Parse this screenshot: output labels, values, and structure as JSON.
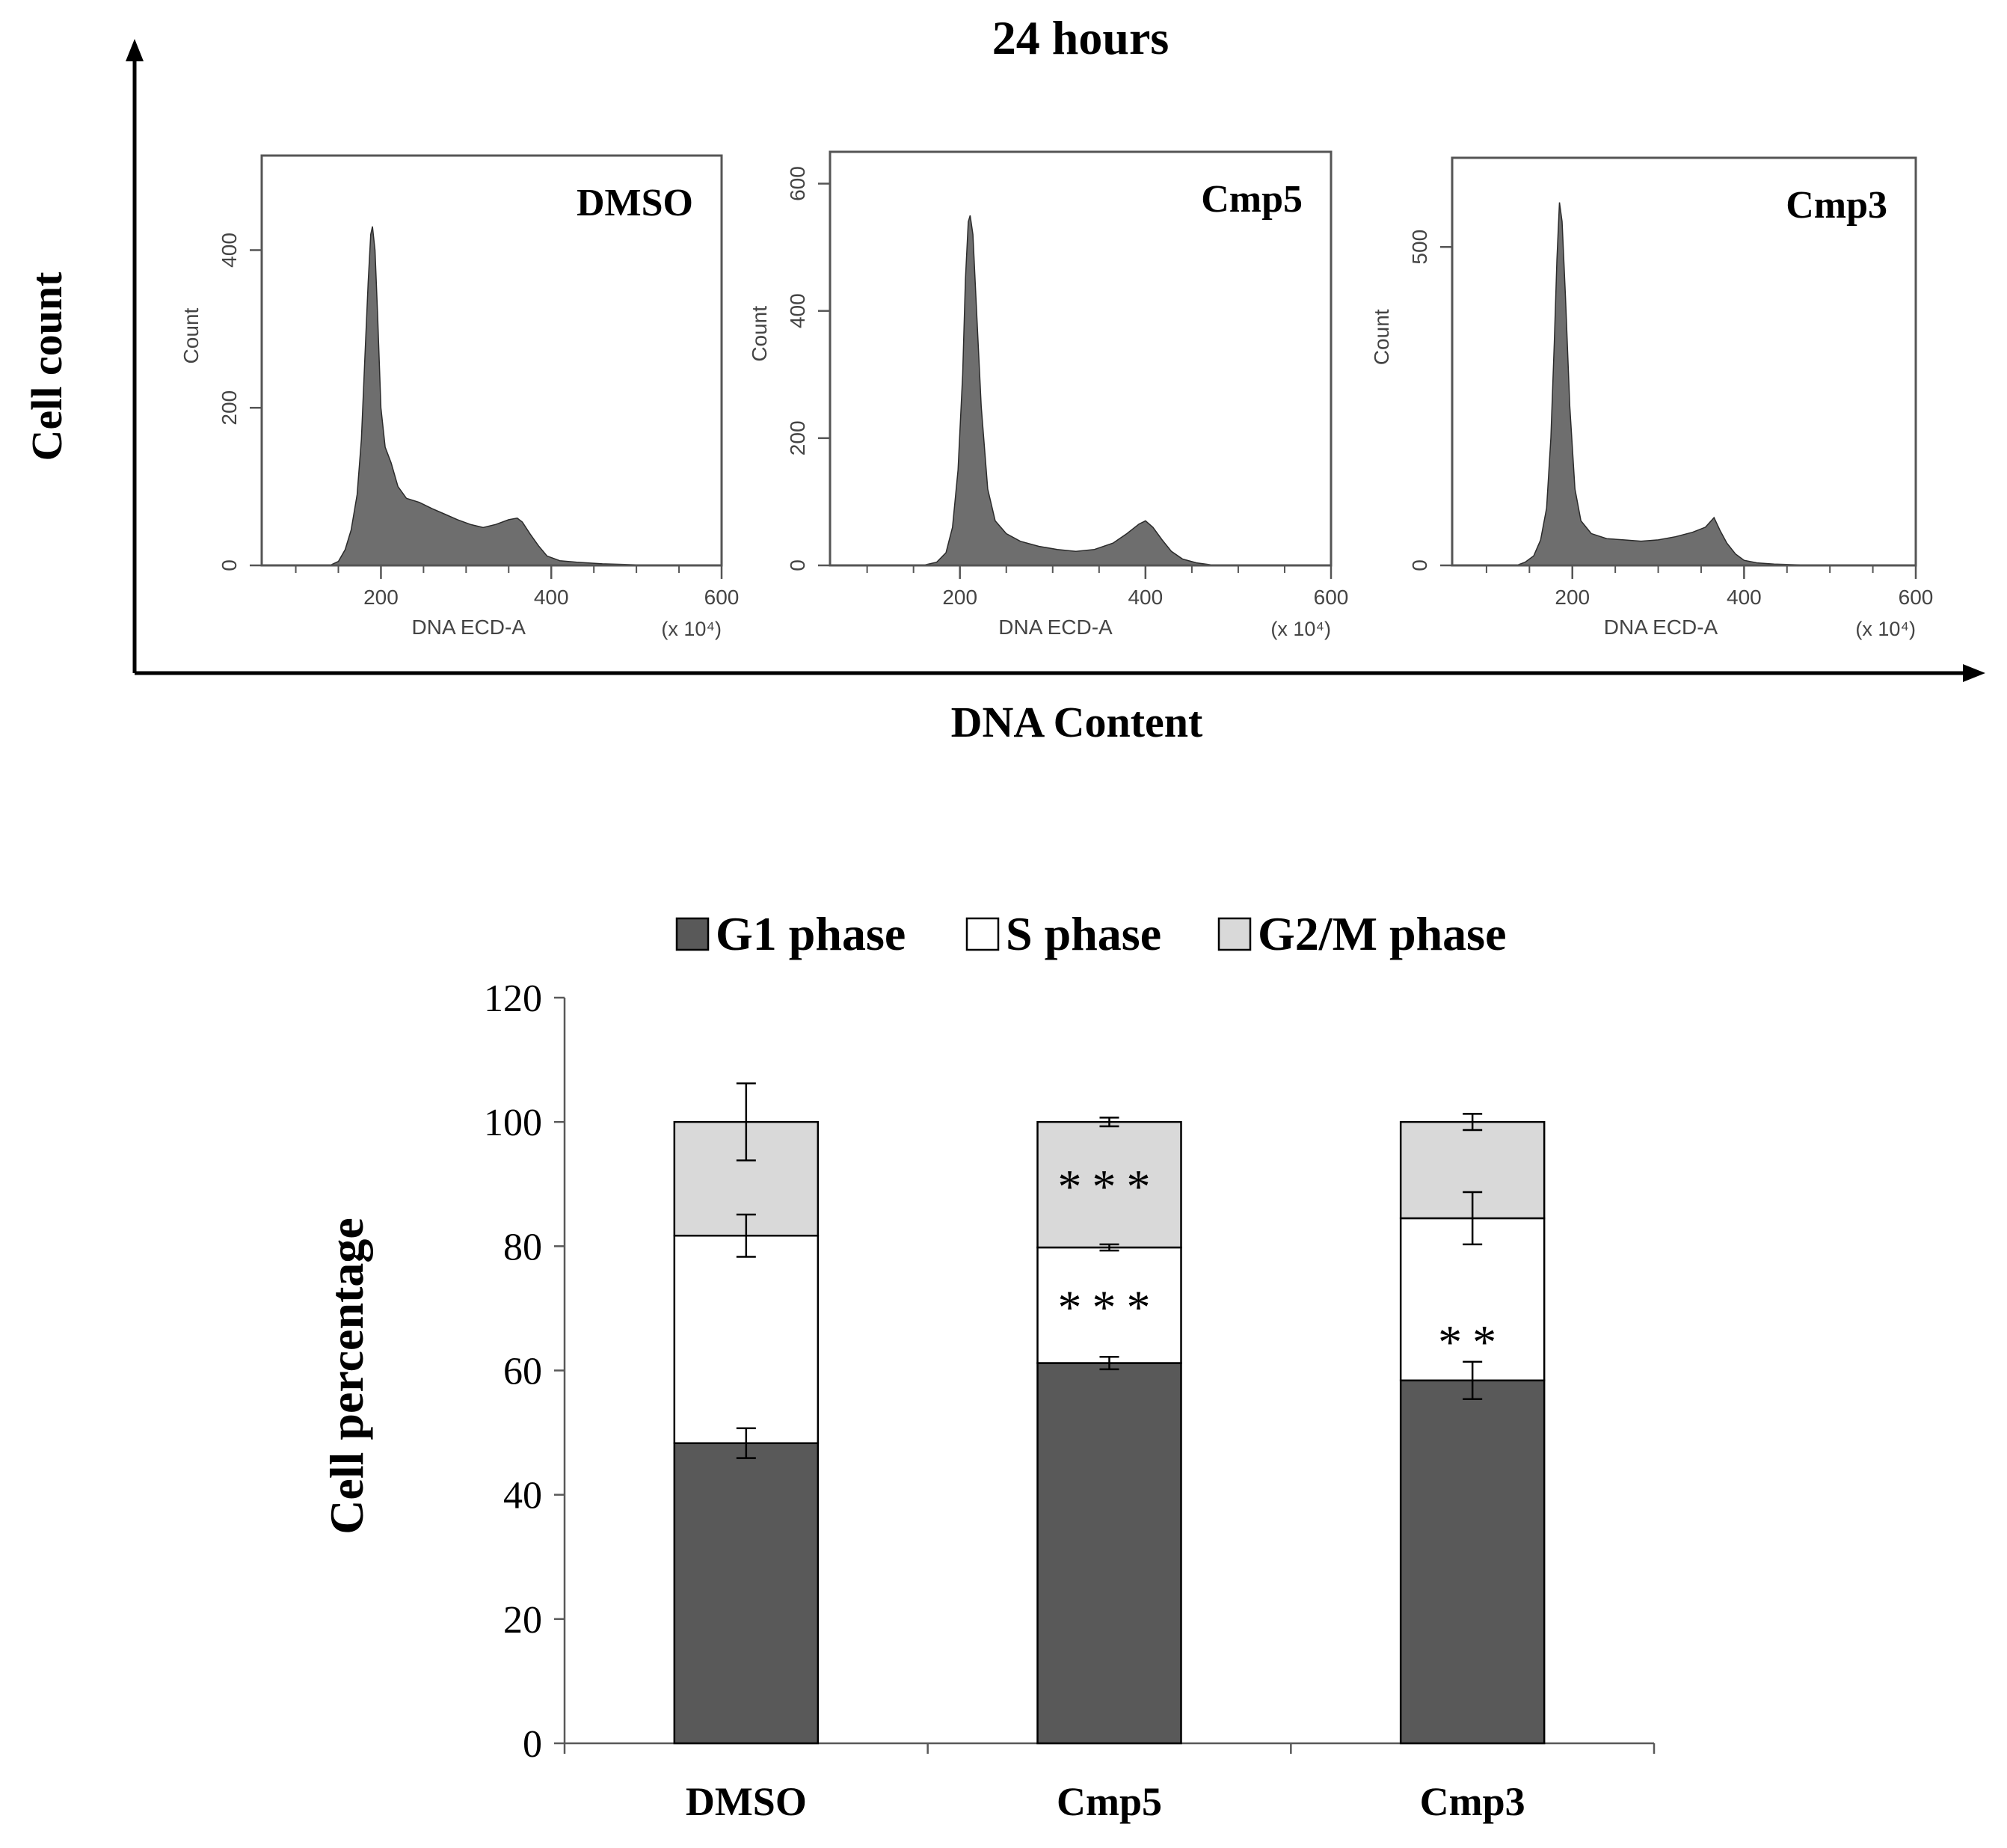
{
  "title": "24 hours",
  "colors": {
    "g1": "#595959",
    "s": "#ffffff",
    "g2m": "#d9d9d9",
    "axis": "#000000",
    "histogram_fill": "#6e6e6e"
  },
  "histograms": {
    "y_axis_title": "Cell count",
    "x_axis_title": "DNA Content",
    "panel_x_label": "DNA ECD-A",
    "panel_y_label": "Count",
    "x_unit": "(x 10⁴)",
    "panels": [
      {
        "label": "DMSO",
        "x_ticks": [
          200,
          400,
          600
        ],
        "y_ticks": [
          0,
          200,
          400
        ],
        "ymax": 520,
        "g1_peak_x": 190,
        "g1_peak_y": 430,
        "g2_peak_x": 365,
        "g2_peak_y": 60,
        "profile": [
          [
            60,
            0
          ],
          [
            140,
            0
          ],
          [
            150,
            5
          ],
          [
            158,
            20
          ],
          [
            165,
            45
          ],
          [
            172,
            90
          ],
          [
            177,
            160
          ],
          [
            181,
            260
          ],
          [
            185,
            360
          ],
          [
            188,
            420
          ],
          [
            190,
            430
          ],
          [
            193,
            400
          ],
          [
            196,
            320
          ],
          [
            200,
            200
          ],
          [
            205,
            150
          ],
          [
            212,
            130
          ],
          [
            220,
            100
          ],
          [
            230,
            85
          ],
          [
            245,
            80
          ],
          [
            260,
            72
          ],
          [
            275,
            65
          ],
          [
            290,
            58
          ],
          [
            305,
            52
          ],
          [
            320,
            48
          ],
          [
            335,
            52
          ],
          [
            350,
            58
          ],
          [
            360,
            60
          ],
          [
            366,
            55
          ],
          [
            375,
            40
          ],
          [
            385,
            25
          ],
          [
            395,
            12
          ],
          [
            410,
            6
          ],
          [
            430,
            4
          ],
          [
            460,
            2
          ],
          [
            490,
            1
          ],
          [
            520,
            0
          ],
          [
            600,
            0
          ]
        ]
      },
      {
        "label": "Cmp5",
        "x_ticks": [
          200,
          400,
          600
        ],
        "y_ticks": [
          0,
          200,
          400,
          600
        ],
        "ymax": 650,
        "g1_peak_x": 210,
        "g1_peak_y": 550,
        "g2_peak_x": 400,
        "g2_peak_y": 70,
        "profile": [
          [
            60,
            0
          ],
          [
            160,
            0
          ],
          [
            175,
            5
          ],
          [
            185,
            20
          ],
          [
            192,
            60
          ],
          [
            198,
            150
          ],
          [
            203,
            300
          ],
          [
            206,
            450
          ],
          [
            209,
            540
          ],
          [
            211,
            550
          ],
          [
            214,
            520
          ],
          [
            218,
            400
          ],
          [
            223,
            250
          ],
          [
            230,
            120
          ],
          [
            238,
            70
          ],
          [
            250,
            50
          ],
          [
            265,
            38
          ],
          [
            285,
            30
          ],
          [
            305,
            25
          ],
          [
            325,
            22
          ],
          [
            345,
            25
          ],
          [
            365,
            35
          ],
          [
            380,
            50
          ],
          [
            393,
            65
          ],
          [
            400,
            70
          ],
          [
            408,
            60
          ],
          [
            418,
            40
          ],
          [
            428,
            22
          ],
          [
            440,
            10
          ],
          [
            455,
            4
          ],
          [
            470,
            1
          ],
          [
            490,
            0
          ],
          [
            600,
            0
          ]
        ]
      },
      {
        "label": "Cmp3",
        "x_ticks": [
          200,
          400,
          600
        ],
        "y_ticks": [
          0,
          500
        ],
        "ymax": 640,
        "g1_peak_x": 185,
        "g1_peak_y": 570,
        "g2_peak_x": 365,
        "g2_peak_y": 75,
        "profile": [
          [
            60,
            0
          ],
          [
            135,
            0
          ],
          [
            145,
            5
          ],
          [
            155,
            15
          ],
          [
            163,
            40
          ],
          [
            170,
            90
          ],
          [
            175,
            200
          ],
          [
            179,
            350
          ],
          [
            182,
            480
          ],
          [
            185,
            570
          ],
          [
            188,
            540
          ],
          [
            192,
            420
          ],
          [
            197,
            250
          ],
          [
            203,
            120
          ],
          [
            210,
            70
          ],
          [
            222,
            50
          ],
          [
            240,
            42
          ],
          [
            260,
            40
          ],
          [
            280,
            38
          ],
          [
            300,
            40
          ],
          [
            320,
            45
          ],
          [
            340,
            52
          ],
          [
            355,
            60
          ],
          [
            365,
            75
          ],
          [
            372,
            55
          ],
          [
            380,
            35
          ],
          [
            390,
            18
          ],
          [
            400,
            8
          ],
          [
            415,
            4
          ],
          [
            435,
            2
          ],
          [
            460,
            1
          ],
          [
            490,
            0
          ],
          [
            600,
            0
          ]
        ]
      }
    ]
  },
  "chart_data": {
    "type": "bar",
    "stacked": true,
    "categories": [
      "DMSO",
      "Cmp5",
      "Cmp3"
    ],
    "series": [
      {
        "name": "G1 phase",
        "values": [
          48.3,
          61.2,
          58.4
        ],
        "errors": [
          2.4,
          1.0,
          3.0
        ],
        "color": "#595959"
      },
      {
        "name": "S phase",
        "values": [
          33.4,
          18.6,
          26.1
        ],
        "errors": [
          3.4,
          0.5,
          4.2
        ],
        "color": "#ffffff"
      },
      {
        "name": "G2/M phase",
        "values": [
          18.3,
          20.2,
          15.5
        ],
        "errors": [
          6.2,
          0.7,
          1.3
        ],
        "color": "#d9d9d9"
      }
    ],
    "annotations": [
      {
        "category": "Cmp5",
        "series": "G2/M phase",
        "text": "***"
      },
      {
        "category": "Cmp5",
        "series": "S phase",
        "text": "***"
      },
      {
        "category": "Cmp3",
        "series": "S phase",
        "text": "**"
      }
    ],
    "ylabel": "Cell percentage",
    "xlabel": "",
    "ylim": [
      0,
      120
    ],
    "yticks": [
      0,
      20,
      40,
      60,
      80,
      100,
      120
    ],
    "legend_position": "top"
  }
}
